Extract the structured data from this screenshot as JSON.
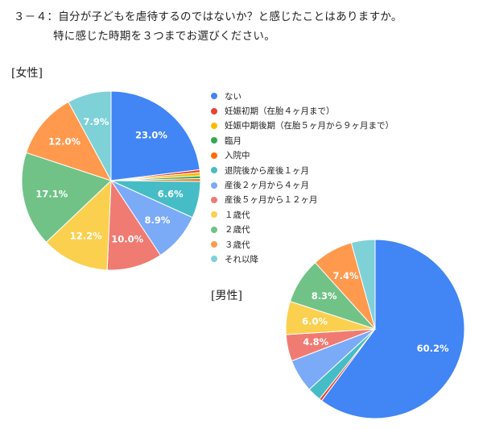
{
  "question": {
    "line1": "３－４：自分が子どもを虐待するのではないか？と感じたことはありますか。",
    "line2": "特に感じた時期を３つまでお選びください。"
  },
  "chart_data": {
    "type": "pie",
    "categories": [
      "ない",
      "妊娠初期（在胎４ヶ月まで）",
      "妊娠中期後期（在胎５ヶ月から９ヶ月まで）",
      "臨月",
      "入院中",
      "退院後から産後１ヶ月",
      "産後２ヶ月から４ヶ月",
      "産後５ヶ月から１２ヶ月",
      "１歳代",
      "２歳代",
      "３歳代",
      "それ以降"
    ],
    "colors": [
      "#4285F4",
      "#EA4335",
      "#FBBC04",
      "#34A853",
      "#FF6D01",
      "#46BDC6",
      "#7BAAF7",
      "#F07B72",
      "#FCD04F",
      "#71C287",
      "#FF994D",
      "#7ED1D7"
    ],
    "legend_position": "right",
    "charts": [
      {
        "group": "[女性]",
        "values": [
          23.0,
          0.5,
          0.6,
          0.5,
          0.5,
          6.6,
          8.9,
          10.0,
          12.2,
          17.1,
          12.0,
          7.9
        ],
        "data_labels": [
          "23.0%",
          "",
          "",
          "",
          "",
          "6.6%",
          "8.9%",
          "10.0%",
          "12.2%",
          "17.1%",
          "12.0%",
          "7.9%"
        ]
      },
      {
        "group": "[男性]",
        "values": [
          60.2,
          0.5,
          0.0,
          0.0,
          0.0,
          2.5,
          6.0,
          4.8,
          6.0,
          8.3,
          7.4,
          4.3
        ],
        "data_labels": [
          "60.2%",
          "",
          "",
          "",
          "",
          "",
          "",
          "4.8%",
          "6.0%",
          "8.3%",
          "7.4%",
          ""
        ]
      }
    ]
  }
}
